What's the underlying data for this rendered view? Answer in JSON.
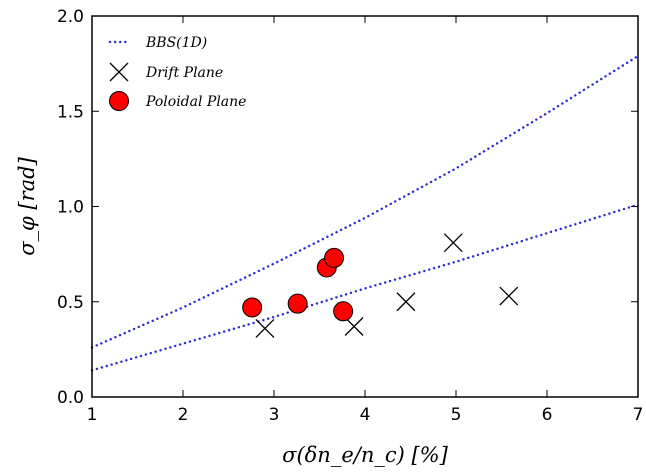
{
  "chart_data": {
    "type": "scatter",
    "title": "",
    "xlabel": "σ(δn_e/n_c) [%]",
    "ylabel": "σ_φ [rad]",
    "xlim": [
      1,
      7
    ],
    "ylim": [
      0,
      2.0
    ],
    "x_ticks": [
      1,
      2,
      3,
      4,
      5,
      6,
      7
    ],
    "x_tick_labels": [
      "1",
      "2",
      "3",
      "4",
      "5",
      "6",
      "7"
    ],
    "y_ticks": [
      0,
      0.5,
      1.0,
      1.5,
      2.0
    ],
    "y_tick_labels": [
      "0.0",
      "0.5",
      "1.0",
      "1.5",
      "2.0"
    ],
    "grid": false,
    "legend_position": "top-left",
    "series": [
      {
        "name": "BBS(1D)",
        "kind": "dotted-line",
        "color": "#2b2bd6",
        "curves": [
          {
            "x": [
              1,
              2,
              3,
              4,
              5,
              6,
              7
            ],
            "y": [
              0.26,
              0.47,
              0.7,
              0.94,
              1.2,
              1.49,
              1.79
            ]
          },
          {
            "x": [
              1,
              2,
              3,
              4,
              5,
              6,
              7
            ],
            "y": [
              0.14,
              0.28,
              0.42,
              0.57,
              0.71,
              0.86,
              1.01
            ]
          }
        ]
      },
      {
        "name": "Drift Plane",
        "kind": "x-marker",
        "color": "#000000",
        "x": [
          2.9,
          3.88,
          4.45,
          4.97,
          5.58
        ],
        "y": [
          0.36,
          0.37,
          0.5,
          0.81,
          0.53
        ]
      },
      {
        "name": "Poloidal Plane",
        "kind": "circle-marker",
        "color": "#ff0000",
        "x": [
          2.76,
          3.26,
          3.58,
          3.66,
          3.76
        ],
        "y": [
          0.47,
          0.49,
          0.68,
          0.73,
          0.45
        ]
      }
    ]
  }
}
